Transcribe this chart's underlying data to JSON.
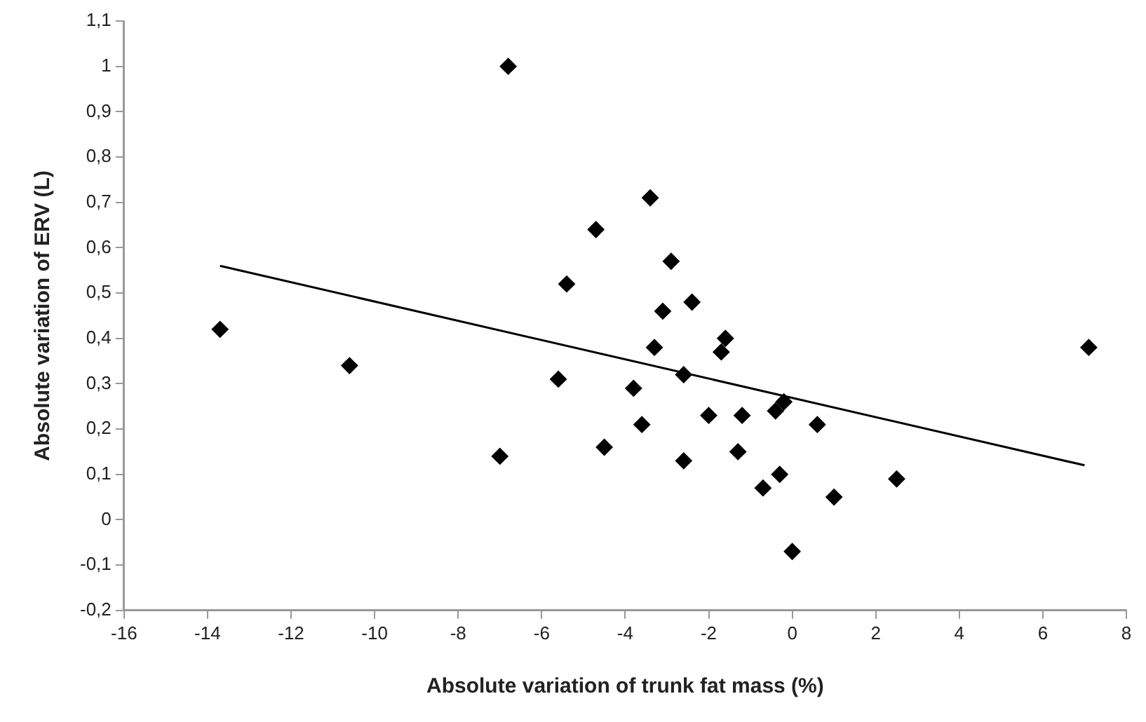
{
  "chart_data": {
    "type": "scatter",
    "xlabel": "Absolute variation of trunk fat mass (%)",
    "ylabel": "Absolute variation of ERV (L)",
    "marker": "diamond",
    "grid": false,
    "legend": false,
    "xlim": [
      -16,
      8
    ],
    "xticks": [
      -16,
      -14,
      -12,
      -10,
      -8,
      -6,
      -4,
      -2,
      0,
      2,
      4,
      6,
      8
    ],
    "ylim": [
      -0.2,
      1.1
    ],
    "yticks": [
      {
        "value": -0.2,
        "label": "-0,2"
      },
      {
        "value": -0.1,
        "label": "-0,1"
      },
      0,
      {
        "value": 0.1,
        "label": "0,1"
      },
      {
        "value": 0.2,
        "label": "0,2"
      },
      {
        "value": 0.3,
        "label": "0,3"
      },
      {
        "value": 0.4,
        "label": "0,4"
      },
      {
        "value": 0.5,
        "label": "0,5"
      },
      {
        "value": 0.6,
        "label": "0,6"
      },
      {
        "value": 0.7,
        "label": "0,7"
      },
      {
        "value": 0.8,
        "label": "0,8"
      },
      {
        "value": 0.9,
        "label": "0,9"
      },
      1,
      {
        "value": 1.1,
        "label": "1,1"
      }
    ],
    "series": [
      {
        "color": "#000000",
        "x": [
          -13.7,
          -10.6,
          -6.8,
          -7.0,
          -5.6,
          -5.4,
          -4.7,
          -4.5,
          -3.8,
          -3.6,
          -3.4,
          -3.3,
          -3.1,
          -2.9,
          -2.6,
          -2.6,
          -2.4,
          -2.0,
          -1.7,
          -1.6,
          -1.3,
          -1.2,
          -0.7,
          -0.4,
          -0.3,
          -0.2,
          0.0,
          0.6,
          1.0,
          2.5,
          7.1
        ],
        "values": [
          0.42,
          0.34,
          1.0,
          0.14,
          0.31,
          0.52,
          0.64,
          0.16,
          0.29,
          0.21,
          0.71,
          0.38,
          0.46,
          0.57,
          0.32,
          0.13,
          0.48,
          0.23,
          0.37,
          0.4,
          0.15,
          0.23,
          0.07,
          0.24,
          0.1,
          0.26,
          -0.07,
          0.21,
          0.05,
          0.09,
          0.38
        ]
      },
      {
        "type": "line",
        "color": "#000000",
        "marker": "none",
        "x": [
          -13.7,
          7.0
        ],
        "values": [
          0.56,
          0.12
        ]
      }
    ]
  }
}
